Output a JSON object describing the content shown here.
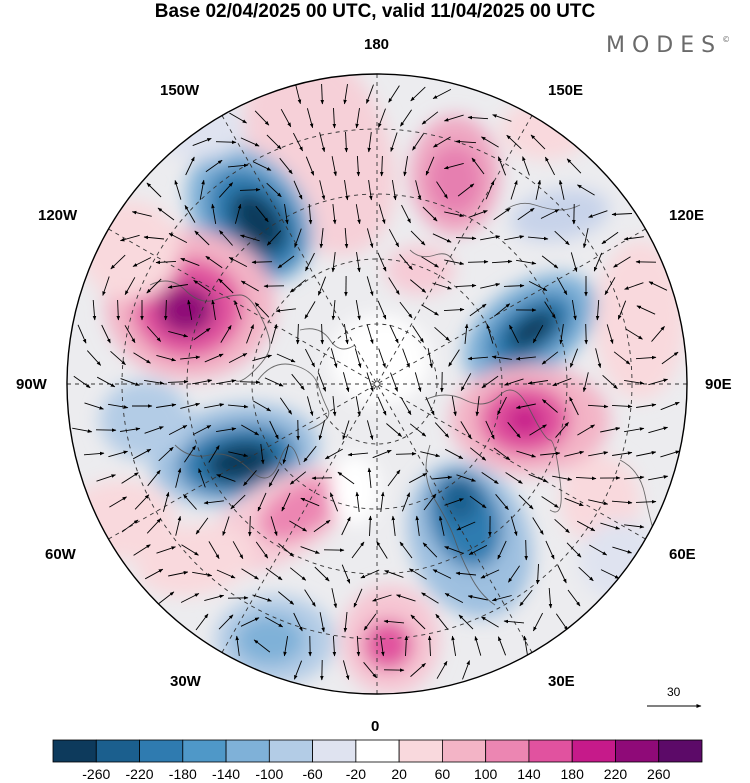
{
  "title": "Base 02/04/2025 00 UTC, valid 11/04/2025 00 UTC",
  "logo": "MODES",
  "logo_mark": "©",
  "longitude_labels": {
    "top": "180",
    "bottom": "0",
    "left": "90W",
    "right": "90E",
    "upper_left_1": "150W",
    "upper_left_2": "120W",
    "lower_left_1": "60W",
    "lower_left_2": "30W",
    "upper_right_1": "150E",
    "upper_right_2": "120E",
    "lower_right_1": "60E",
    "lower_right_2": "30E"
  },
  "reference_vector": {
    "label": "30"
  },
  "colorbar": {
    "labels": [
      "-260",
      "-220",
      "-180",
      "-140",
      "-100",
      "-60",
      "-20",
      "20",
      "60",
      "100",
      "140",
      "180",
      "220",
      "260"
    ],
    "colors": [
      "#0d3a5c",
      "#1b5f8e",
      "#2f7bb0",
      "#4f98c8",
      "#7fb1d8",
      "#b3cce6",
      "#dfe3f0",
      "#ffffff",
      "#f9d9dd",
      "#f3b4c6",
      "#ec86b2",
      "#e1529f",
      "#c61a8a",
      "#8f0a78",
      "#5c0a68"
    ]
  }
}
